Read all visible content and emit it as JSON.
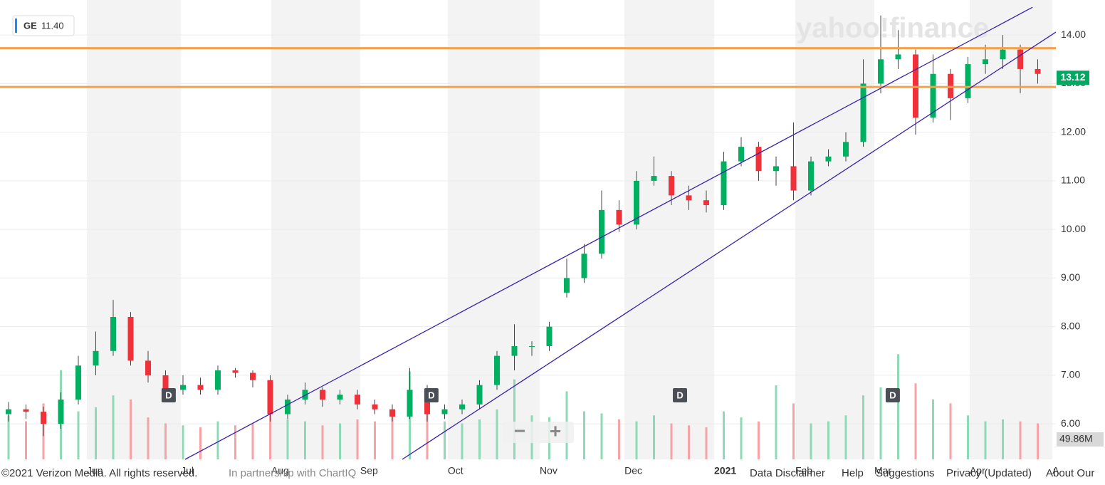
{
  "chart_data": {
    "type": "candlestick",
    "symbol": "GE",
    "legend_price": "11.40",
    "watermark": "yahoo!finance",
    "open": [
      6.2,
      6.3,
      6.25,
      6.0,
      6.5,
      7.2,
      7.5,
      8.2,
      7.3,
      7.0,
      6.7,
      6.8,
      6.7,
      7.1,
      7.05,
      6.9,
      6.2,
      6.5,
      6.7,
      6.5,
      6.6,
      6.4,
      6.3,
      6.15,
      6.7,
      6.2,
      6.3,
      6.4,
      6.8,
      7.4,
      7.6,
      7.6,
      8.7,
      9.0,
      9.5,
      10.4,
      10.1,
      11.0,
      11.1,
      10.7,
      10.6,
      10.5,
      11.4,
      11.7,
      11.2,
      11.3,
      10.8,
      11.4,
      11.5,
      11.8,
      13.0,
      13.5,
      13.6,
      12.3,
      13.2,
      12.7,
      13.4,
      13.5,
      13.7,
      13.3
    ],
    "high": [
      6.45,
      6.4,
      6.35,
      6.65,
      7.4,
      7.9,
      8.55,
      8.3,
      7.5,
      7.1,
      7.0,
      6.95,
      7.2,
      7.15,
      7.1,
      7.0,
      6.6,
      6.85,
      6.75,
      6.7,
      6.7,
      6.5,
      6.4,
      7.15,
      6.8,
      6.4,
      6.5,
      6.9,
      7.5,
      8.05,
      7.7,
      8.1,
      9.4,
      9.7,
      10.8,
      10.6,
      11.2,
      11.5,
      11.2,
      10.9,
      10.8,
      11.6,
      11.9,
      11.8,
      11.5,
      12.2,
      11.5,
      11.65,
      12.0,
      13.5,
      14.4,
      14.1,
      13.7,
      13.6,
      13.3,
      13.55,
      13.8,
      14.0,
      13.8,
      13.5
    ],
    "low": [
      6.05,
      6.1,
      5.75,
      5.9,
      6.4,
      7.0,
      7.4,
      7.2,
      6.85,
      6.6,
      6.6,
      6.6,
      6.6,
      6.95,
      6.75,
      6.05,
      6.1,
      6.4,
      6.35,
      6.4,
      6.3,
      6.2,
      6.05,
      6.1,
      6.05,
      6.1,
      6.2,
      6.3,
      6.7,
      7.1,
      7.4,
      7.5,
      8.6,
      8.9,
      9.4,
      9.95,
      10.0,
      10.9,
      10.5,
      10.4,
      10.35,
      10.4,
      11.3,
      11.0,
      10.9,
      10.6,
      10.7,
      11.3,
      11.4,
      11.7,
      12.8,
      13.3,
      11.95,
      12.2,
      12.25,
      12.6,
      13.2,
      13.3,
      12.8,
      13.0
    ],
    "close": [
      6.3,
      6.25,
      6.0,
      6.5,
      7.2,
      7.5,
      8.2,
      7.3,
      7.0,
      6.7,
      6.8,
      6.7,
      7.1,
      7.05,
      6.9,
      6.2,
      6.5,
      6.7,
      6.5,
      6.6,
      6.4,
      6.3,
      6.15,
      6.7,
      6.2,
      6.3,
      6.4,
      6.8,
      7.4,
      7.6,
      7.6,
      8.0,
      9.0,
      9.5,
      10.4,
      10.1,
      11.0,
      11.1,
      10.7,
      10.6,
      10.5,
      11.4,
      11.7,
      11.2,
      11.3,
      10.8,
      11.4,
      11.5,
      11.8,
      13.0,
      13.5,
      13.6,
      12.3,
      13.2,
      12.7,
      13.4,
      13.5,
      13.7,
      13.3,
      13.2
    ],
    "volume": [
      110,
      95,
      140,
      223,
      120,
      130,
      160,
      150,
      105,
      90,
      85,
      80,
      95,
      85,
      90,
      150,
      100,
      95,
      85,
      90,
      100,
      95,
      110,
      220,
      130,
      95,
      90,
      100,
      125,
      200,
      110,
      105,
      170,
      120,
      115,
      100,
      95,
      110,
      90,
      85,
      80,
      120,
      105,
      95,
      185,
      140,
      90,
      95,
      110,
      160,
      180,
      263,
      190,
      150,
      140,
      110,
      95,
      100,
      95,
      90
    ],
    "xlim": [
      -0.49,
      60.04
    ],
    "xticks": [
      {
        "value": 4.49,
        "label": "Jun"
      },
      {
        "value": 9.88,
        "label": "Jul"
      },
      {
        "value": 15.06,
        "label": "Aug"
      },
      {
        "value": 20.16,
        "label": "Sep"
      },
      {
        "value": 25.18,
        "label": "Oct"
      },
      {
        "value": 30.45,
        "label": "Nov"
      },
      {
        "value": 35.31,
        "label": "Dec"
      },
      {
        "value": 40.45,
        "label": "2021"
      },
      {
        "value": 45.1,
        "label": "Feb"
      },
      {
        "value": 49.63,
        "label": "Mar"
      },
      {
        "value": 55.1,
        "label": "Apr"
      },
      {
        "value": 59.84,
        "label": "A"
      }
    ],
    "ylim": [
      5.27,
      14.72
    ],
    "yticks": [
      {
        "value": 6,
        "label": "6.00"
      },
      {
        "value": 7,
        "label": "7.00"
      },
      {
        "value": 8,
        "label": "8.00"
      },
      {
        "value": 9,
        "label": "9.00"
      },
      {
        "value": 10,
        "label": "10.00"
      },
      {
        "value": 11,
        "label": "11.00"
      },
      {
        "value": 12,
        "label": "12.00"
      },
      {
        "value": 13,
        "label": "13.00"
      },
      {
        "value": 14,
        "label": "14.00"
      }
    ],
    "levels": [
      13.73,
      12.93
    ],
    "trendlines": [
      {
        "x": [
          10.12,
          58.7
        ],
        "y": [
          5.27,
          14.57
        ]
      },
      {
        "x": [
          22.57,
          60.04
        ],
        "y": [
          5.27,
          14.06
        ]
      }
    ],
    "markers": [
      {
        "label": "D",
        "x": 9.18
      },
      {
        "label": "D",
        "x": 24.24
      },
      {
        "label": "D",
        "x": 38.49
      },
      {
        "label": "D",
        "x": 50.69
      }
    ],
    "current_price": {
      "value": 13.12,
      "label": "13.12"
    },
    "current_volume": {
      "value": 49.86,
      "label": "49.86M"
    },
    "zoom": [
      "−",
      "+"
    ]
  },
  "footer": {
    "copyright": "©2021 Verizon Media. All rights reserved.",
    "partner": "In partnership with ChartIQ",
    "links": [
      "Data Disclaimer",
      "Help",
      "Suggestions",
      "Privacy (Updated)",
      "About Our"
    ]
  }
}
